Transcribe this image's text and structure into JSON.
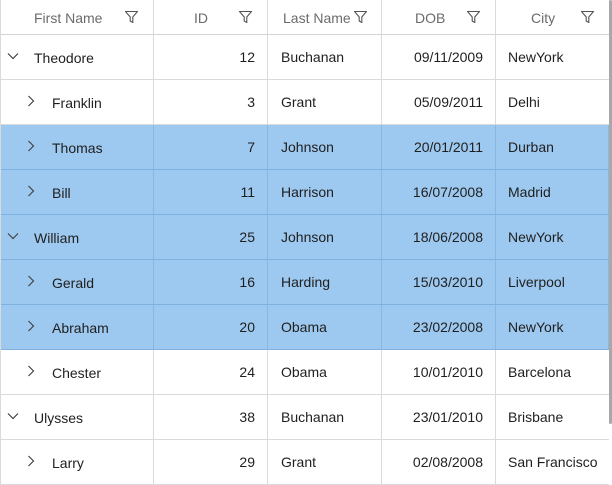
{
  "columns": {
    "first_name": "First Name",
    "id": "ID",
    "last_name": "Last Name",
    "dob": "DOB",
    "city": "City"
  },
  "rows": [
    {
      "level": 0,
      "expanded": true,
      "selected": false,
      "first": "Theodore",
      "id": "12",
      "last": "Buchanan",
      "dob": "09/11/2009",
      "city": "NewYork"
    },
    {
      "level": 1,
      "expanded": false,
      "selected": false,
      "first": "Franklin",
      "id": "3",
      "last": "Grant",
      "dob": "05/09/2011",
      "city": "Delhi"
    },
    {
      "level": 1,
      "expanded": false,
      "selected": true,
      "first": "Thomas",
      "id": "7",
      "last": "Johnson",
      "dob": "20/01/2011",
      "city": "Durban"
    },
    {
      "level": 1,
      "expanded": false,
      "selected": true,
      "first": "Bill",
      "id": "11",
      "last": "Harrison",
      "dob": "16/07/2008",
      "city": "Madrid"
    },
    {
      "level": 0,
      "expanded": true,
      "selected": true,
      "first": "William",
      "id": "25",
      "last": "Johnson",
      "dob": "18/06/2008",
      "city": "NewYork"
    },
    {
      "level": 1,
      "expanded": false,
      "selected": true,
      "first": "Gerald",
      "id": "16",
      "last": "Harding",
      "dob": "15/03/2010",
      "city": "Liverpool"
    },
    {
      "level": 1,
      "expanded": false,
      "selected": true,
      "first": "Abraham",
      "id": "20",
      "last": "Obama",
      "dob": "23/02/2008",
      "city": "NewYork"
    },
    {
      "level": 1,
      "expanded": false,
      "selected": false,
      "first": "Chester",
      "id": "24",
      "last": "Obama",
      "dob": "10/01/2010",
      "city": "Barcelona"
    },
    {
      "level": 0,
      "expanded": true,
      "selected": false,
      "first": "Ulysses",
      "id": "38",
      "last": "Buchanan",
      "dob": "23/01/2010",
      "city": "Brisbane"
    },
    {
      "level": 1,
      "expanded": false,
      "selected": false,
      "first": "Larry",
      "id": "29",
      "last": "Grant",
      "dob": "02/08/2008",
      "city": "San Francisco"
    }
  ],
  "icons": {
    "filter": "filter-icon",
    "expanded": "chevron-down-icon",
    "collapsed": "chevron-right-icon"
  },
  "colors": {
    "selected_row": "#9dc8ef",
    "gridline": "#dadada",
    "header_text": "#6b6b6b"
  }
}
